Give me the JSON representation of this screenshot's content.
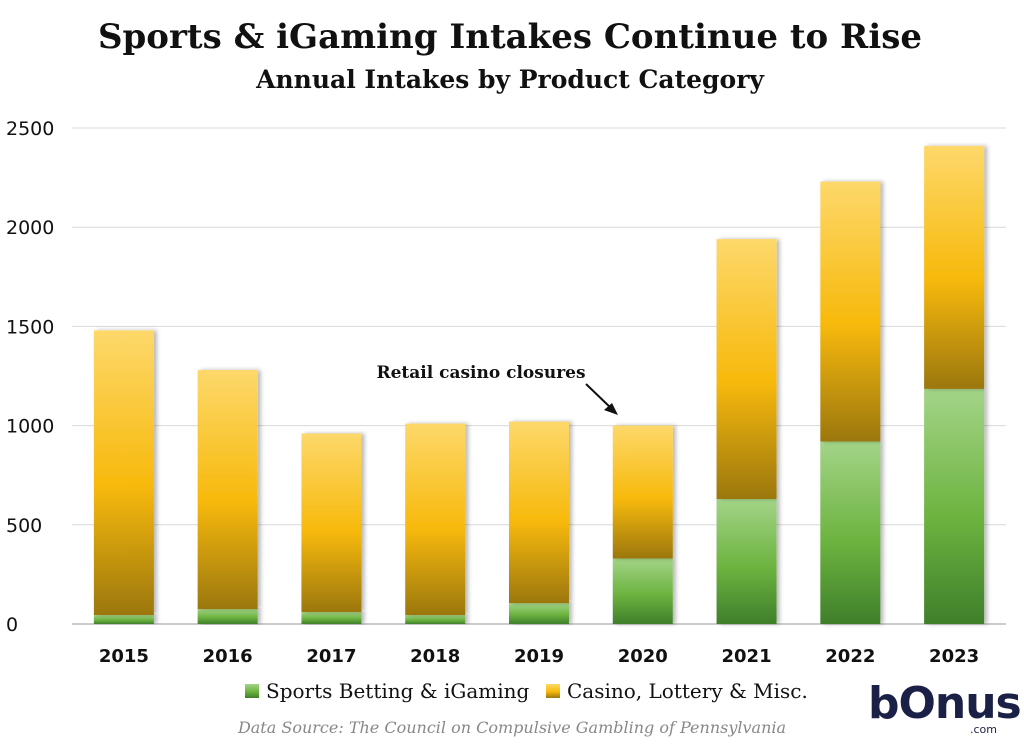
{
  "chart_data": {
    "type": "bar",
    "stacked": true,
    "title": "Sports & iGaming Intakes Continue to Rise",
    "subtitle": "Annual Intakes by Product Category",
    "categories": [
      "2015",
      "2016",
      "2017",
      "2018",
      "2019",
      "2020",
      "2021",
      "2022",
      "2023"
    ],
    "series": [
      {
        "name": "Sports Betting & iGaming",
        "color": "#6cb33f",
        "values": [
          45,
          75,
          60,
          45,
          105,
          330,
          630,
          920,
          1185
        ]
      },
      {
        "name": "Casino, Lottery & Misc.",
        "color": "#f5b80f",
        "values": [
          1435,
          1205,
          900,
          965,
          915,
          670,
          1310,
          1310,
          1225
        ]
      }
    ],
    "yticks": [
      "0",
      "500",
      "1000",
      "1500",
      "2000",
      "2500"
    ],
    "ylim": [
      0,
      2500
    ],
    "grid": true,
    "legend_position": "bottom",
    "annotation": "Retail casino closures",
    "source": "Data Source: The Council on Compulsive Gambling of Pennsylvania"
  },
  "logo": {
    "name": "bOnus",
    "suffix": ".com"
  }
}
